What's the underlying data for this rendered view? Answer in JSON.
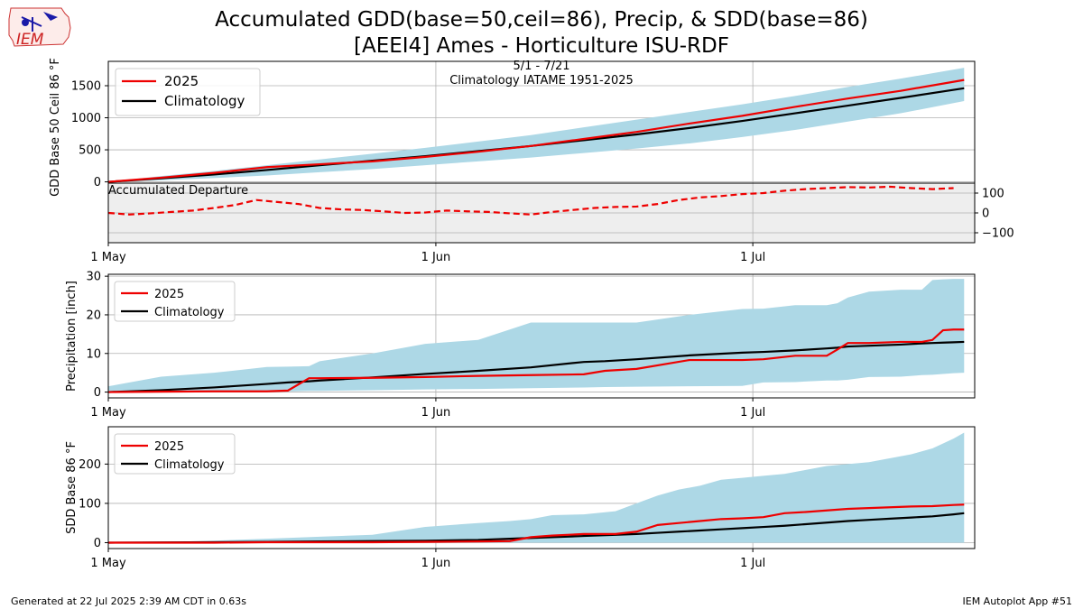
{
  "page": {
    "title_line1": "Accumulated GDD(base=50,ceil=86), Precip, & SDD(base=86)",
    "title_line2": "[AEEI4] Ames - Horticulture ISU-RDF",
    "footer_left": "Generated at 22 Jul 2025 2:39 AM CDT in 0.63s",
    "footer_right": "IEM Autoplot App #51",
    "logo_text": "IEM"
  },
  "colors": {
    "obs": "#ee0000",
    "clim": "#000000",
    "band": "#add8e6",
    "departure_bg": "#eeeeee",
    "grid": "#b0b0b0"
  },
  "chart_data": [
    {
      "type": "line",
      "name": "gdd",
      "ylabel": "GDD Base 50 Ceil 86 °F",
      "ylim": [
        -20,
        1880
      ],
      "yticks": [
        0,
        500,
        1000,
        1500
      ],
      "xlim": [
        0,
        82
      ],
      "xticks": [
        {
          "x": 0,
          "label": "1 May"
        },
        {
          "x": 31,
          "label": "1 Jun"
        },
        {
          "x": 61,
          "label": "1 Jul"
        }
      ],
      "annotation": [
        "5/1 - 7/21",
        "Climatology IATAME 1951-2025"
      ],
      "legend": [
        "2025",
        "Climatology"
      ],
      "legend_position": "upper-left",
      "x": [
        0,
        5,
        10,
        15,
        20,
        25,
        30,
        35,
        40,
        45,
        50,
        55,
        60,
        65,
        70,
        75,
        81
      ],
      "series": [
        {
          "name": "2025",
          "values": [
            0,
            65,
            140,
            230,
            275,
            320,
            390,
            470,
            560,
            670,
            780,
            910,
            1030,
            1170,
            1300,
            1420,
            1590
          ]
        },
        {
          "name": "Climatology",
          "values": [
            0,
            55,
            115,
            185,
            260,
            330,
            400,
            480,
            560,
            650,
            740,
            840,
            950,
            1070,
            1190,
            1310,
            1460
          ]
        }
      ],
      "band": {
        "lower": [
          0,
          25,
          60,
          100,
          150,
          200,
          260,
          320,
          380,
          450,
          520,
          600,
          700,
          810,
          940,
          1070,
          1260
        ],
        "upper": [
          0,
          90,
          170,
          260,
          350,
          440,
          530,
          630,
          730,
          850,
          970,
          1090,
          1210,
          1340,
          1480,
          1610,
          1780
        ]
      }
    },
    {
      "type": "line",
      "name": "departure",
      "label": "Accumulated Departure",
      "ylim": [
        -150,
        150
      ],
      "yticks": [
        -100,
        0,
        100
      ],
      "xlim": [
        0,
        82
      ],
      "x": [
        0,
        2,
        4,
        6,
        8,
        10,
        12,
        14,
        16,
        18,
        20,
        22,
        24,
        26,
        28,
        30,
        32,
        34,
        36,
        38,
        40,
        42,
        44,
        46,
        48,
        50,
        52,
        54,
        56,
        58,
        60,
        62,
        64,
        66,
        68,
        70,
        72,
        74,
        76,
        78,
        80
      ],
      "series": [
        {
          "name": "2025",
          "values": [
            0,
            -8,
            -2,
            5,
            12,
            25,
            40,
            65,
            55,
            45,
            25,
            18,
            15,
            8,
            0,
            2,
            12,
            8,
            5,
            -2,
            -8,
            5,
            15,
            25,
            30,
            32,
            45,
            65,
            78,
            85,
            95,
            100,
            112,
            120,
            125,
            130,
            128,
            132,
            125,
            120,
            125
          ]
        }
      ]
    },
    {
      "type": "line",
      "name": "precip",
      "ylabel": "Precipitation [inch]",
      "ylim": [
        -1.5,
        30.5
      ],
      "yticks": [
        0,
        10,
        20,
        30
      ],
      "xlim": [
        0,
        82
      ],
      "xticks": [
        {
          "x": 0,
          "label": "1 May"
        },
        {
          "x": 31,
          "label": "1 Jun"
        },
        {
          "x": 61,
          "label": "1 Jul"
        }
      ],
      "legend": [
        "2025",
        "Climatology"
      ],
      "legend_position": "upper-left",
      "x": [
        0,
        5,
        10,
        15,
        17,
        19,
        20,
        25,
        30,
        35,
        40,
        45,
        47,
        50,
        55,
        60,
        62,
        65,
        68,
        69,
        70,
        72,
        75,
        77,
        78,
        79,
        80,
        81
      ],
      "series": [
        {
          "name": "2025",
          "values": [
            0,
            0.1,
            0.2,
            0.2,
            0.4,
            3.6,
            3.6,
            3.7,
            3.9,
            4.2,
            4.4,
            4.6,
            5.5,
            6.0,
            8.3,
            8.3,
            8.5,
            9.4,
            9.4,
            11.0,
            12.7,
            12.7,
            13.0,
            13.0,
            13.5,
            16.0,
            16.2,
            16.2
          ]
        },
        {
          "name": "Climatology",
          "values": [
            0,
            0.5,
            1.2,
            2.1,
            2.5,
            2.8,
            3.0,
            3.8,
            4.7,
            5.5,
            6.4,
            7.8,
            8.0,
            8.5,
            9.5,
            10.2,
            10.4,
            10.8,
            11.3,
            11.5,
            11.8,
            12.0,
            12.3,
            12.6,
            12.7,
            12.8,
            12.9,
            13.0
          ]
        }
      ],
      "band": {
        "lower": [
          0,
          0.1,
          0.1,
          0.2,
          0.2,
          0.3,
          0.3,
          0.5,
          0.7,
          0.8,
          1.0,
          1.2,
          1.3,
          1.4,
          1.5,
          1.6,
          2.5,
          2.6,
          3.0,
          3.0,
          3.2,
          3.9,
          4.0,
          4.4,
          4.5,
          4.7,
          4.9,
          5.0
        ],
        "upper": [
          1.5,
          4.0,
          5.0,
          6.5,
          6.6,
          6.7,
          8.0,
          10.0,
          12.5,
          13.5,
          18.0,
          18.0,
          18.0,
          18.0,
          20.0,
          21.5,
          21.6,
          22.5,
          22.5,
          23.0,
          24.5,
          26.0,
          26.5,
          26.5,
          29.0,
          29.2,
          29.3,
          29.3
        ]
      }
    },
    {
      "type": "line",
      "name": "sdd",
      "ylabel": "SDD Base 86 °F",
      "ylim": [
        -15,
        295
      ],
      "yticks": [
        0,
        100,
        200
      ],
      "xlim": [
        0,
        82
      ],
      "xticks": [
        {
          "x": 0,
          "label": "1 May"
        },
        {
          "x": 31,
          "label": "1 Jun"
        },
        {
          "x": 61,
          "label": "1 Jul"
        }
      ],
      "legend": [
        "2025",
        "Climatology"
      ],
      "legend_position": "upper-left",
      "x": [
        0,
        5,
        10,
        15,
        20,
        25,
        30,
        35,
        38,
        40,
        42,
        45,
        48,
        50,
        52,
        54,
        56,
        58,
        60,
        62,
        64,
        66,
        68,
        70,
        72,
        74,
        76,
        78,
        80,
        81
      ],
      "series": [
        {
          "name": "2025",
          "values": [
            0,
            0,
            0,
            1,
            1,
            1,
            2,
            3,
            4,
            14,
            18,
            22,
            22,
            28,
            45,
            50,
            55,
            60,
            62,
            65,
            75,
            78,
            82,
            86,
            88,
            90,
            92,
            93,
            96,
            97
          ]
        },
        {
          "name": "Climatology",
          "values": [
            0,
            0.5,
            1,
            2,
            3,
            4,
            5,
            7,
            10,
            12,
            14,
            17,
            20,
            22,
            25,
            28,
            31,
            34,
            37,
            40,
            43,
            47,
            51,
            55,
            58,
            61,
            64,
            67,
            72,
            75
          ]
        }
      ],
      "band": {
        "lower": [
          0,
          0,
          0,
          0,
          0,
          0,
          0,
          0,
          0,
          0,
          0,
          0,
          0,
          0,
          0,
          0,
          0,
          0,
          0,
          0,
          0,
          0,
          0,
          0,
          0,
          0,
          0,
          0,
          0,
          0
        ],
        "upper": [
          0,
          1,
          5,
          10,
          15,
          20,
          40,
          50,
          55,
          60,
          70,
          72,
          80,
          100,
          120,
          135,
          145,
          160,
          165,
          170,
          175,
          185,
          195,
          200,
          205,
          215,
          225,
          240,
          265,
          280
        ]
      }
    }
  ]
}
